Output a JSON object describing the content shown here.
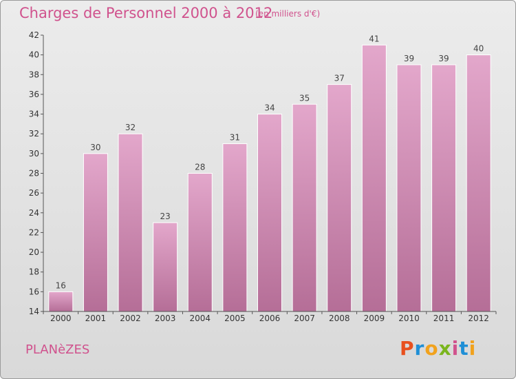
{
  "header": {
    "title": "Charges de Personnel 2000 à 2012",
    "subtitle": "(en milliers d'€)"
  },
  "footer": {
    "place": "PLANèZES",
    "logo_text": "Proxiti",
    "logo_colors": [
      "#e8501e",
      "#1f8fd6",
      "#f1a21d",
      "#7ab51d",
      "#d0528d",
      "#1f8fd6",
      "#f1a21d"
    ]
  },
  "colors": {
    "bar_top": "#e3a7cb",
    "bar_bottom": "#b56e97",
    "accent": "#d0528d"
  },
  "chart_data": {
    "type": "bar",
    "title": "Charges de Personnel 2000 à 2012",
    "subtitle": "(en milliers d'€)",
    "categories": [
      "2000",
      "2001",
      "2002",
      "2003",
      "2004",
      "2005",
      "2006",
      "2007",
      "2008",
      "2009",
      "2010",
      "2011",
      "2012"
    ],
    "values": [
      16,
      30,
      32,
      23,
      28,
      31,
      34,
      35,
      37,
      41,
      39,
      39,
      40
    ],
    "ylim": [
      14,
      42
    ],
    "yticks": [
      14,
      16,
      18,
      20,
      22,
      24,
      26,
      28,
      30,
      32,
      34,
      36,
      38,
      40,
      42
    ],
    "grid": false,
    "xlabel": "",
    "ylabel": ""
  }
}
